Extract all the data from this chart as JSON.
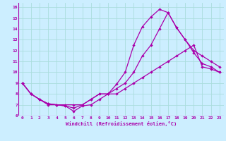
{
  "xlabel": "Windchill (Refroidissement éolien,°C)",
  "background_color": "#cceeff",
  "grid_color": "#aadddd",
  "line_color": "#aa00aa",
  "xlim": [
    -0.5,
    23.5
  ],
  "ylim": [
    6,
    16.4
  ],
  "xticks": [
    0,
    1,
    2,
    3,
    4,
    5,
    6,
    7,
    8,
    9,
    10,
    11,
    12,
    13,
    14,
    15,
    16,
    17,
    18,
    19,
    20,
    21,
    22,
    23
  ],
  "yticks": [
    6,
    7,
    8,
    9,
    10,
    11,
    12,
    13,
    14,
    15,
    16
  ],
  "curve1_x": [
    0,
    1,
    2,
    3,
    4,
    5,
    6,
    7,
    8,
    9,
    10,
    11,
    12,
    13,
    14,
    15,
    16,
    17,
    18,
    19,
    20,
    21,
    22,
    23
  ],
  "curve1_y": [
    9.0,
    8.0,
    7.5,
    7.1,
    7.0,
    6.9,
    6.4,
    6.9,
    7.0,
    7.5,
    8.0,
    8.9,
    10.0,
    12.5,
    14.2,
    15.1,
    15.8,
    15.5,
    14.1,
    13.0,
    11.8,
    10.8,
    10.5,
    10.0
  ],
  "curve2_x": [
    0,
    1,
    2,
    3,
    4,
    5,
    6,
    7,
    8,
    9,
    10,
    11,
    12,
    13,
    14,
    15,
    16,
    17,
    18,
    19,
    20,
    21,
    22,
    23
  ],
  "curve2_y": [
    9.0,
    8.0,
    7.5,
    7.1,
    7.0,
    6.9,
    6.7,
    7.0,
    7.5,
    8.0,
    8.0,
    8.5,
    9.0,
    10.0,
    11.5,
    12.5,
    14.0,
    15.5,
    14.1,
    13.0,
    12.0,
    11.5,
    11.0,
    10.5
  ],
  "curve3_x": [
    0,
    1,
    2,
    3,
    4,
    5,
    6,
    7,
    8,
    9,
    10,
    11,
    12,
    13,
    14,
    15,
    16,
    17,
    18,
    19,
    20,
    21,
    22,
    23
  ],
  "curve3_y": [
    9.0,
    8.0,
    7.5,
    7.0,
    7.0,
    7.0,
    7.0,
    7.0,
    7.5,
    8.0,
    8.0,
    8.0,
    8.5,
    9.0,
    9.5,
    10.0,
    10.5,
    11.0,
    11.5,
    12.0,
    12.5,
    10.5,
    10.3,
    10.0
  ]
}
